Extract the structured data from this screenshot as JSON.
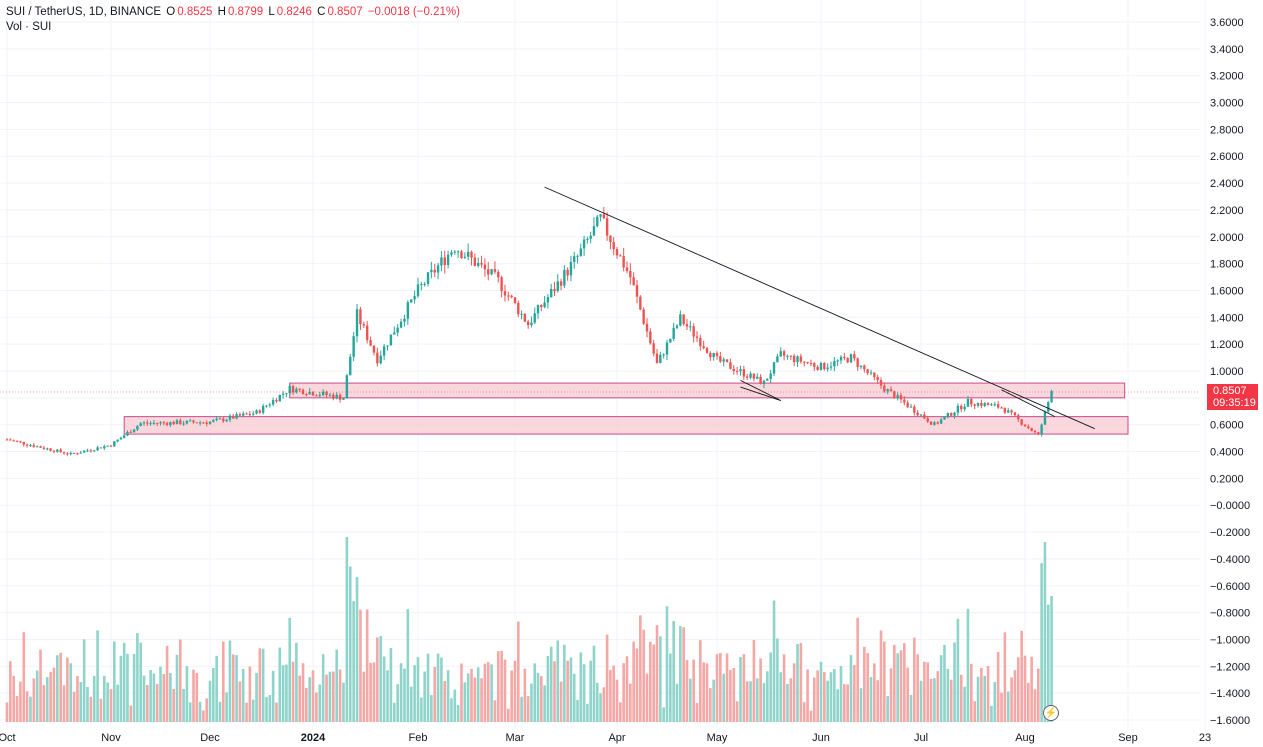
{
  "header": {
    "symbol": "SUI / TetherUS, 1D, BINANCE",
    "o_label": "O",
    "o_val": "0.8525",
    "h_label": "H",
    "h_val": "0.8799",
    "l_label": "L",
    "l_val": "0.8246",
    "c_label": "C",
    "c_val": "0.8507",
    "change": "−0.0018 (−0.21%)",
    "volume_label": "Vol · SUI"
  },
  "price_tag": {
    "price": "0.8507",
    "countdown": "09:35:19"
  },
  "colors": {
    "up": "#26a69a",
    "down": "#ef5350",
    "vol_up": "#8fd4ca",
    "vol_down": "#f4a7a5",
    "zone_fill": "#f8c9d0",
    "zone_stroke": "#c64b8c",
    "trendline": "#131722"
  },
  "chart_data": {
    "type": "candlestick",
    "y_axis_labels": [
      "3.6000",
      "3.4000",
      "3.2000",
      "3.0000",
      "2.8000",
      "2.6000",
      "2.4000",
      "2.2000",
      "2.0000",
      "1.8000",
      "1.6000",
      "1.4000",
      "1.2000",
      "1.0000",
      "0.8000",
      "0.6000",
      "0.4000",
      "0.2000",
      "−0.0000",
      "−0.2000",
      "−0.4000",
      "−0.6000",
      "−0.8000",
      "−1.0000",
      "−1.2000",
      "−1.4000",
      "−1.6000"
    ],
    "y_range": [
      -1.6,
      3.6
    ],
    "x_axis_labels": [
      "Oct",
      "Nov",
      "Dec",
      "2024",
      "Feb",
      "Mar",
      "Apr",
      "May",
      "Jun",
      "Jul",
      "Aug",
      "Sep",
      "23"
    ],
    "series": [
      {
        "name": "SUI/USDT",
        "approx_closes": [
          {
            "date": "2023-10-01",
            "price": 0.49
          },
          {
            "date": "2023-10-20",
            "price": 0.38
          },
          {
            "date": "2023-11-01",
            "price": 0.45
          },
          {
            "date": "2023-11-10",
            "price": 0.61
          },
          {
            "date": "2023-12-01",
            "price": 0.62
          },
          {
            "date": "2023-12-15",
            "price": 0.69
          },
          {
            "date": "2023-12-25",
            "price": 0.87
          },
          {
            "date": "2024-01-10",
            "price": 0.8
          },
          {
            "date": "2024-01-14",
            "price": 1.42
          },
          {
            "date": "2024-01-20",
            "price": 1.09
          },
          {
            "date": "2024-02-01",
            "price": 1.6
          },
          {
            "date": "2024-02-12",
            "price": 1.93
          },
          {
            "date": "2024-02-25",
            "price": 1.67
          },
          {
            "date": "2024-03-05",
            "price": 1.35
          },
          {
            "date": "2024-03-20",
            "price": 1.85
          },
          {
            "date": "2024-03-27",
            "price": 2.13
          },
          {
            "date": "2024-04-05",
            "price": 1.7
          },
          {
            "date": "2024-04-13",
            "price": 1.05
          },
          {
            "date": "2024-04-20",
            "price": 1.39
          },
          {
            "date": "2024-05-01",
            "price": 1.08
          },
          {
            "date": "2024-05-15",
            "price": 0.91
          },
          {
            "date": "2024-05-20",
            "price": 1.12
          },
          {
            "date": "2024-06-01",
            "price": 1.03
          },
          {
            "date": "2024-06-10",
            "price": 1.1
          },
          {
            "date": "2024-06-20",
            "price": 0.87
          },
          {
            "date": "2024-07-05",
            "price": 0.6
          },
          {
            "date": "2024-07-15",
            "price": 0.77
          },
          {
            "date": "2024-07-25",
            "price": 0.73
          },
          {
            "date": "2024-08-05",
            "price": 0.52
          },
          {
            "date": "2024-08-09",
            "price": 0.8507
          }
        ]
      }
    ],
    "annotations": [
      {
        "type": "zone",
        "from": "2023-12-25",
        "to": "2024-08-31",
        "low": 0.8,
        "high": 0.91
      },
      {
        "type": "zone",
        "from": "2023-11-05",
        "to": "2024-09-01",
        "low": 0.53,
        "high": 0.66
      },
      {
        "type": "trendline",
        "from": {
          "date": "2024-03-10",
          "price": 2.37
        },
        "to": {
          "date": "2024-08-22",
          "price": 0.57
        }
      }
    ]
  }
}
